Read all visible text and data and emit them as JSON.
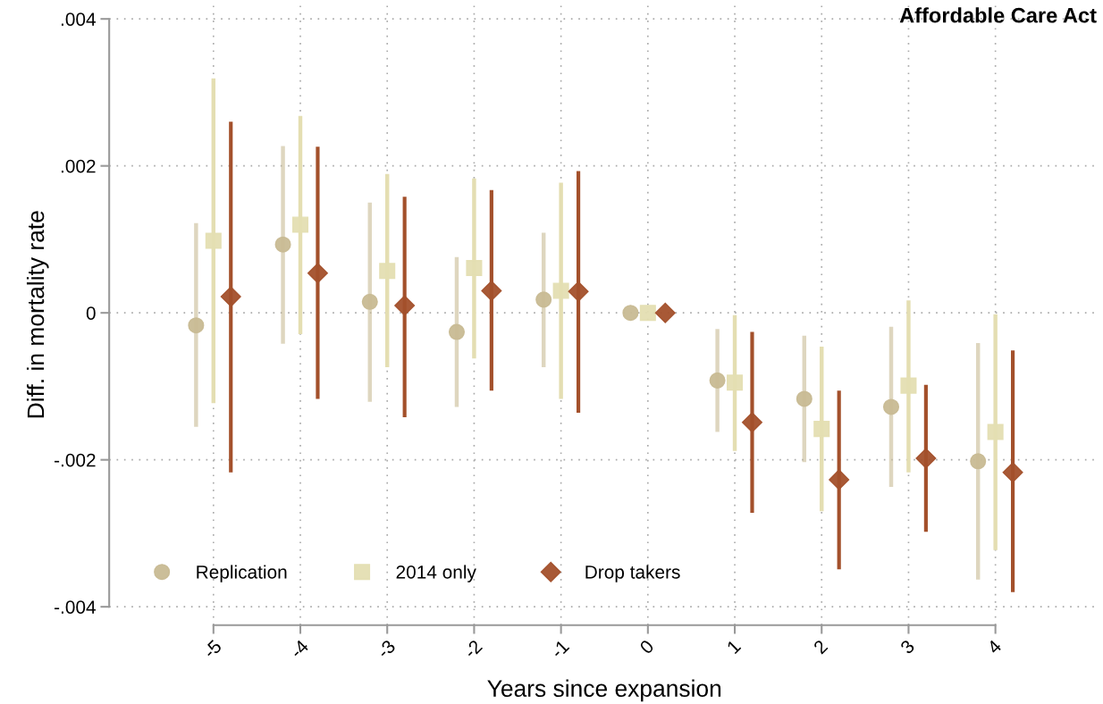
{
  "chart_data": {
    "type": "scatter",
    "title": "Affordable Care Act",
    "xlabel": "Years since expansion",
    "ylabel": "Diff. in mortality rate",
    "series": [
      {
        "name": "Replication",
        "color": "#c8ba94",
        "marker": "circle",
        "x": [
          -5.2,
          -4.2,
          -3.2,
          -2.2,
          -1.2,
          -0.2,
          0.8,
          1.8,
          2.8,
          3.8
        ],
        "values": [
          -0.00017,
          0.00093,
          0.00015,
          -0.00026,
          0.00018,
          0,
          -0.00092,
          -0.00117,
          -0.00128,
          -0.00202
        ],
        "errors": [
          [
            -0.00155,
            0.00122
          ],
          [
            -0.00042,
            0.00227
          ],
          [
            -0.00121,
            0.0015
          ],
          [
            -0.00128,
            0.00076
          ],
          [
            -0.00074,
            0.00109
          ],
          null,
          [
            -0.00162,
            -0.00022
          ],
          [
            -0.00203,
            -0.00031
          ],
          [
            -0.00237,
            -0.00019
          ],
          [
            -0.00363,
            -0.00041
          ]
        ]
      },
      {
        "name": "2014 only",
        "color": "#e4deb2",
        "marker": "square",
        "x": [
          -5,
          -4,
          -3,
          -2,
          -1,
          0,
          1,
          2,
          3,
          4
        ],
        "values": [
          0.00098,
          0.0012,
          0.00057,
          0.00061,
          0.0003,
          0,
          -0.00095,
          -0.00158,
          -0.00099,
          -0.00162
        ],
        "errors": [
          [
            -0.00123,
            0.00319
          ],
          [
            -0.00029,
            0.00268
          ],
          [
            -0.00074,
            0.00189
          ],
          [
            -0.00062,
            0.00183
          ],
          [
            -0.00117,
            0.00177
          ],
          null,
          [
            -0.00188,
            -3e-05
          ],
          [
            -0.0027,
            -0.00046
          ],
          [
            -0.00217,
            0.00017
          ],
          [
            -0.00323,
            -2e-05
          ]
        ]
      },
      {
        "name": "Drop takers",
        "color": "#a3502b",
        "marker": "diamond",
        "x": [
          -4.8,
          -3.8,
          -2.8,
          -1.8,
          -0.8,
          0.2,
          1.2,
          2.2,
          3.2,
          4.2
        ],
        "values": [
          0.00022,
          0.00054,
          0.0001,
          0.0003,
          0.00029,
          0,
          -0.00149,
          -0.00227,
          -0.00198,
          -0.00217
        ],
        "errors": [
          [
            -0.00217,
            0.0026
          ],
          [
            -0.00117,
            0.00226
          ],
          [
            -0.00142,
            0.00158
          ],
          [
            -0.00106,
            0.00167
          ],
          [
            -0.00136,
            0.00193
          ],
          null,
          [
            -0.00272,
            -0.00026
          ],
          [
            -0.00349,
            -0.00106
          ],
          [
            -0.00298,
            -0.00098
          ],
          [
            -0.0038,
            -0.00051
          ]
        ]
      }
    ],
    "xlim": [
      -6.2,
      5.2
    ],
    "xticks": [
      -5,
      -4,
      -3,
      -2,
      -1,
      0,
      1,
      2,
      3,
      4
    ],
    "ylim": [
      -0.00425,
      0.0042
    ],
    "yticks": [
      {
        "value": -0.004,
        "label": "-.004"
      },
      {
        "value": -0.002,
        "label": "-.002"
      },
      0,
      {
        "value": 0.002,
        "label": ".002"
      },
      {
        "value": 0.004,
        "label": ".004"
      }
    ],
    "grid": true,
    "legend": "bottom left"
  }
}
